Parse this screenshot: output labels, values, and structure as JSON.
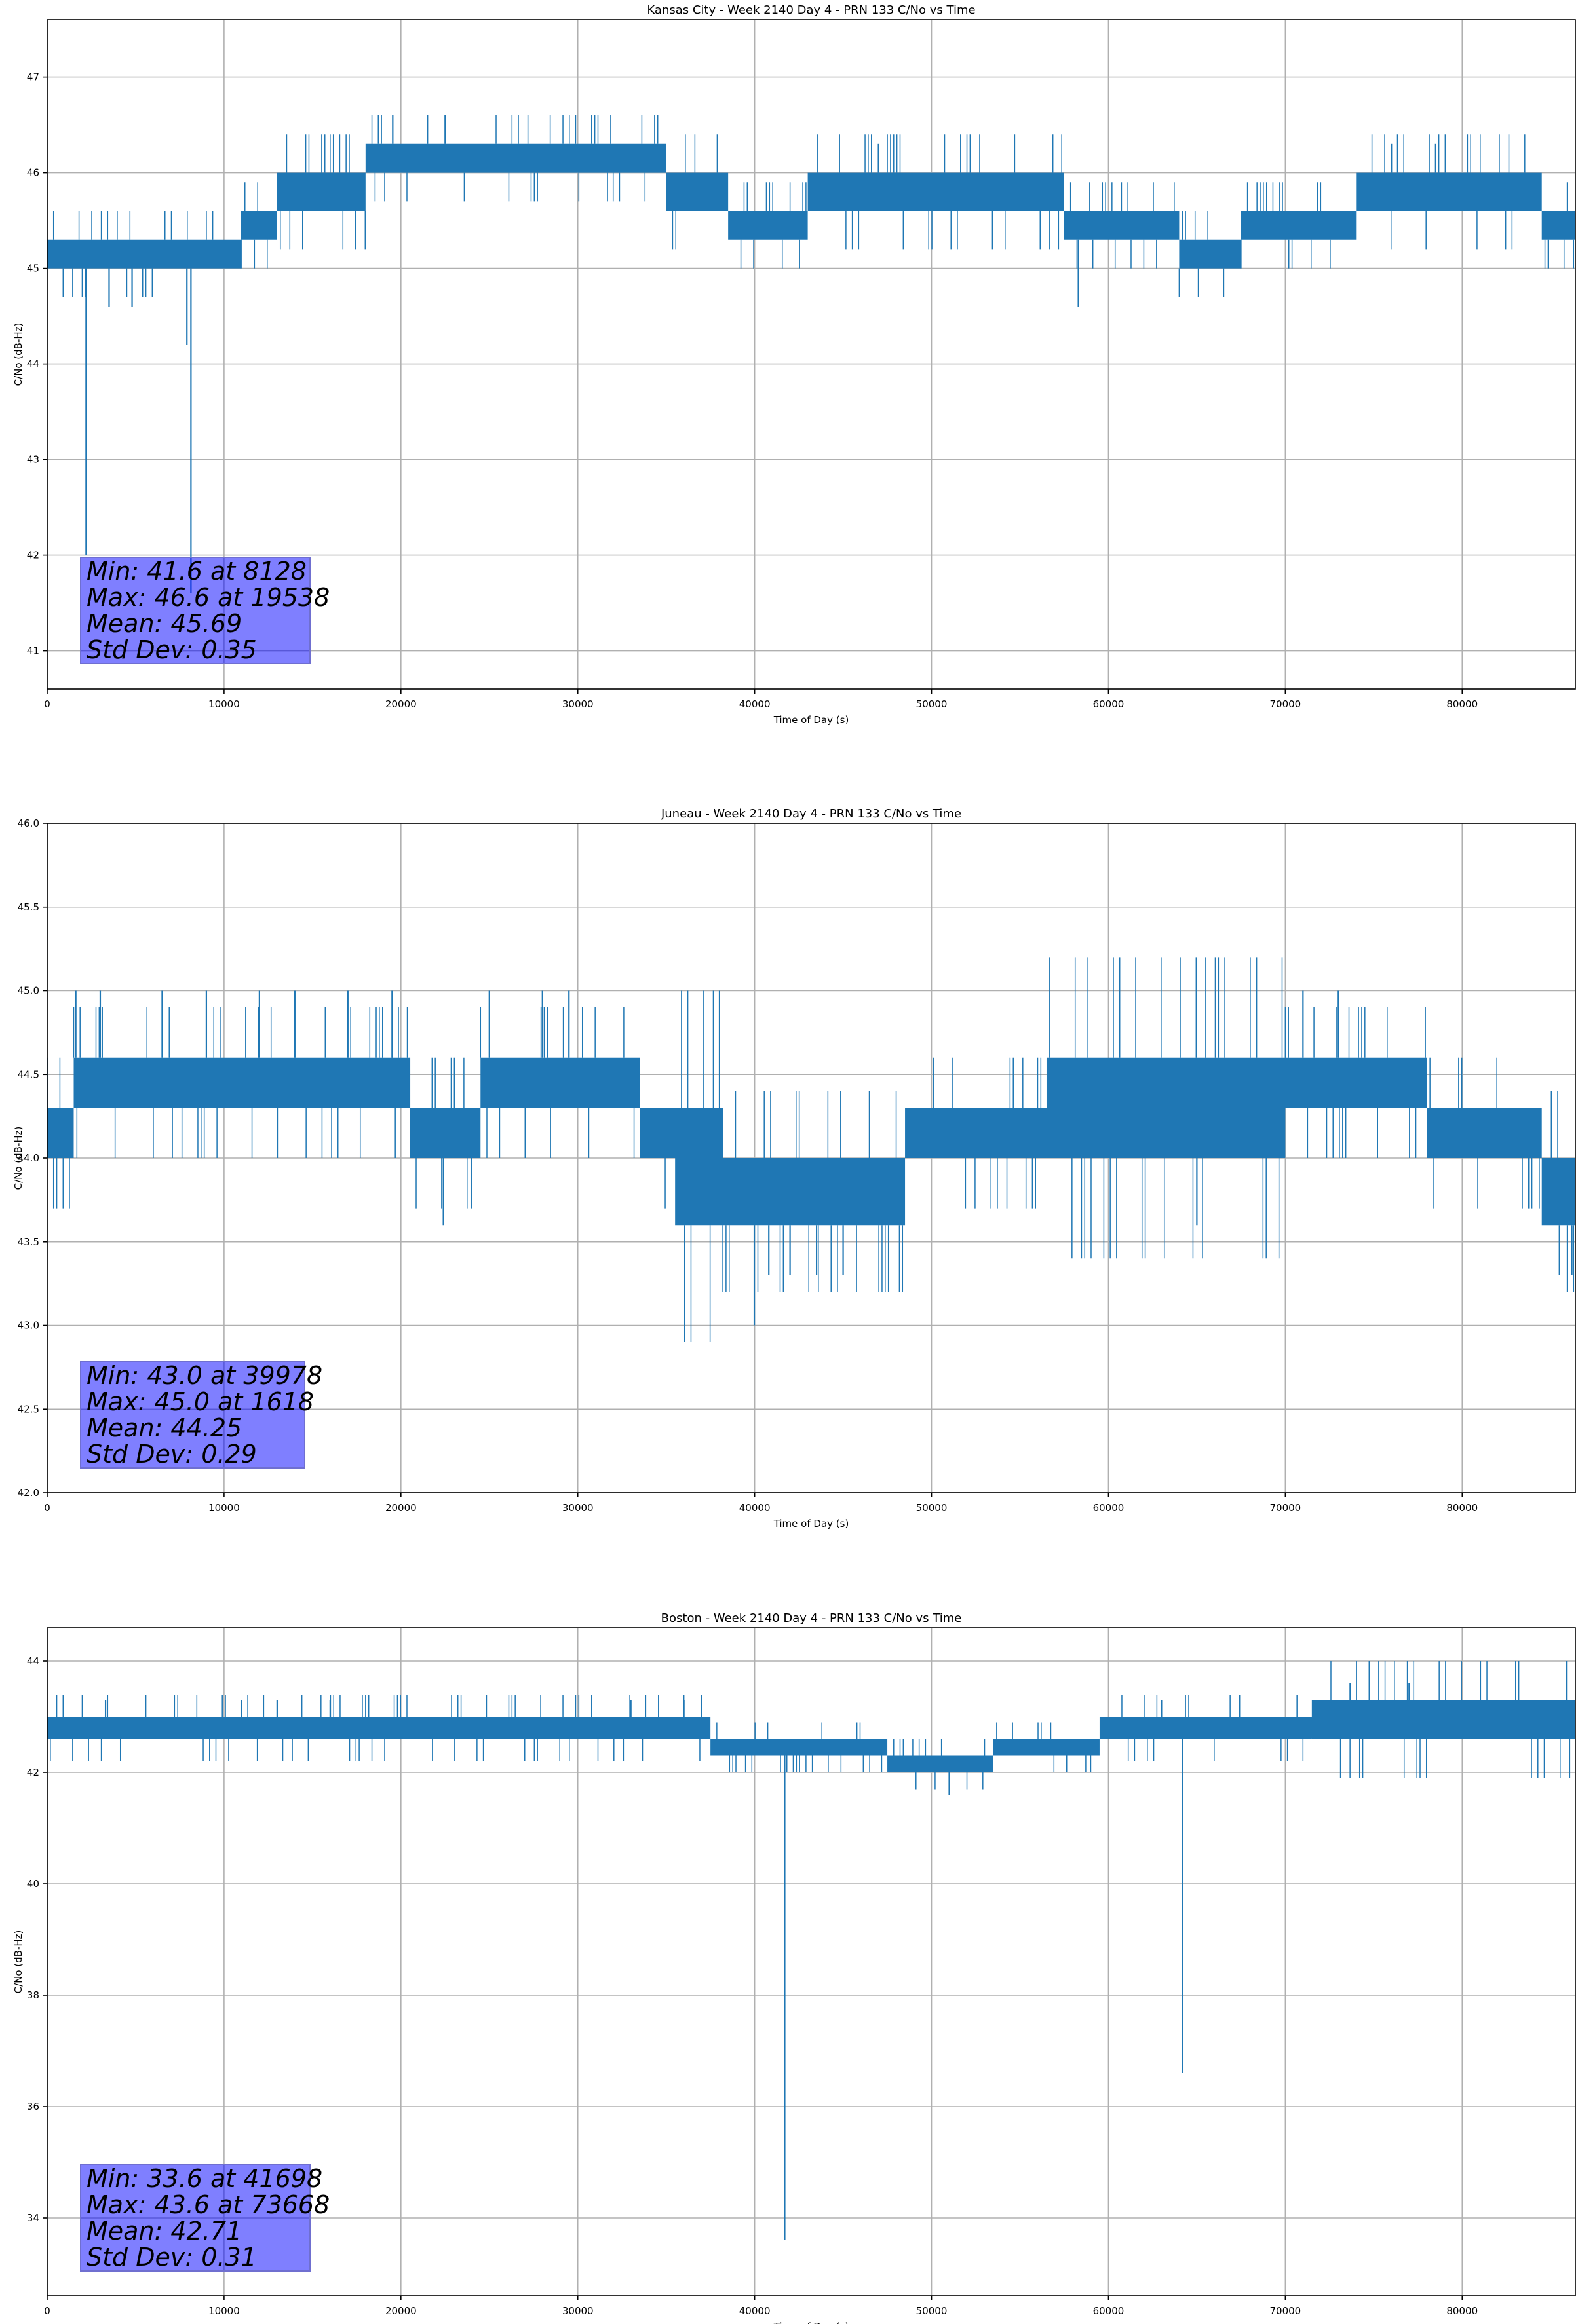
{
  "chart_data": [
    {
      "type": "line",
      "title": "Kansas City - Week 2140 Day 4 - PRN 133 C/No vs Time",
      "xlabel": "Time of Day (s)",
      "ylabel": "C/No (dB-Hz)",
      "xlim": [
        0,
        86400
      ],
      "ylim": [
        40.6,
        47.6
      ],
      "xticks": [
        0,
        10000,
        20000,
        30000,
        40000,
        50000,
        60000,
        70000,
        80000
      ],
      "yticks": [
        41,
        42,
        43,
        44,
        45,
        46,
        47
      ],
      "grid": true,
      "color": "#1f77b4",
      "series": [
        {
          "x": [
            0,
            2000,
            2300,
            5000,
            8000,
            8128,
            8400,
            11000,
            13000,
            16000,
            19538,
            21000,
            24000,
            28000,
            32000,
            35000,
            38000,
            39000,
            42000,
            46000,
            50000,
            52000,
            55000,
            58000,
            58500,
            60000,
            64000,
            66000,
            68000,
            72000,
            76000,
            80000,
            84000,
            85000,
            86400
          ],
          "y": [
            45.2,
            45.1,
            42.1,
            45.2,
            45.2,
            41.6,
            45.2,
            45.4,
            45.6,
            45.8,
            46.6,
            46.2,
            46.2,
            46.1,
            46.1,
            45.8,
            45.8,
            45.4,
            45.4,
            45.8,
            45.8,
            45.8,
            45.7,
            45.6,
            44.6,
            45.4,
            45.4,
            45.2,
            45.5,
            45.5,
            45.8,
            45.8,
            45.8,
            45.5,
            45.4
          ],
          "band": [
            [
              0,
              45.0,
              45.3
            ],
            [
              11000,
              45.3,
              45.6
            ],
            [
              13000,
              45.6,
              46.0
            ],
            [
              16000,
              45.6,
              46.0
            ],
            [
              18000,
              46.0,
              46.3
            ],
            [
              32000,
              46.0,
              46.3
            ],
            [
              35000,
              45.6,
              46.0
            ],
            [
              38000,
              45.6,
              46.0
            ],
            [
              38500,
              45.3,
              45.6
            ],
            [
              42000,
              45.3,
              45.6
            ],
            [
              43000,
              45.6,
              46.0
            ],
            [
              57000,
              45.6,
              46.0
            ],
            [
              57500,
              45.3,
              45.6
            ],
            [
              63000,
              45.3,
              45.6
            ],
            [
              64000,
              45.0,
              45.3
            ],
            [
              67000,
              45.0,
              45.3
            ],
            [
              67500,
              45.3,
              45.6
            ],
            [
              73000,
              45.3,
              45.6
            ],
            [
              74000,
              45.6,
              46.0
            ],
            [
              84000,
              45.6,
              46.0
            ],
            [
              84500,
              45.3,
              45.6
            ],
            [
              86400,
              45.3,
              45.6
            ]
          ],
          "spikes": [
            [
              2200,
              42.0
            ],
            [
              7900,
              44.2
            ],
            [
              8128,
              41.6
            ],
            [
              3500,
              44.6
            ],
            [
              4800,
              44.6
            ],
            [
              58300,
              44.6
            ],
            [
              19538,
              46.6
            ],
            [
              21500,
              46.6
            ],
            [
              22500,
              46.6
            ],
            [
              47000,
              46.3
            ],
            [
              76000,
              46.3
            ],
            [
              78500,
              46.3
            ]
          ]
        }
      ],
      "annotation": {
        "lines": [
          "Min: 41.6 at 8128",
          "Max: 46.6 at 19538",
          "Mean: 45.69",
          "Std Dev: 0.35"
        ]
      }
    },
    {
      "type": "line",
      "title": "Juneau - Week 2140 Day 4 - PRN 133 C/No vs Time",
      "xlabel": "Time of Day (s)",
      "ylabel": "C/No (dB-Hz)",
      "xlim": [
        0,
        86400
      ],
      "ylim": [
        42.0,
        46.0
      ],
      "xticks": [
        0,
        10000,
        20000,
        30000,
        40000,
        50000,
        60000,
        70000,
        80000
      ],
      "yticks": [
        42.0,
        42.5,
        43.0,
        43.5,
        44.0,
        44.5,
        45.0,
        45.5,
        46.0
      ],
      "grid": true,
      "color": "#1f77b4",
      "series": [
        {
          "x": [
            0,
            1618,
            5000,
            10000,
            15000,
            20000,
            25000,
            30000,
            35000,
            38000,
            39978,
            41000,
            45000,
            50000,
            55000,
            60000,
            65000,
            70000,
            75000,
            80000,
            84000,
            86400
          ],
          "y": [
            44.2,
            45.0,
            44.5,
            44.5,
            44.5,
            44.2,
            44.4,
            44.4,
            44.2,
            44.1,
            43.0,
            43.7,
            43.8,
            44.2,
            44.2,
            44.3,
            44.3,
            44.4,
            44.3,
            44.2,
            43.9,
            43.8
          ],
          "band": [
            [
              0,
              44.0,
              44.3
            ],
            [
              1500,
              44.3,
              44.6
            ],
            [
              20000,
              44.3,
              44.6
            ],
            [
              20500,
              44.0,
              44.3
            ],
            [
              24000,
              44.0,
              44.3
            ],
            [
              24500,
              44.3,
              44.6
            ],
            [
              33000,
              44.3,
              44.6
            ],
            [
              33500,
              44.0,
              44.3
            ],
            [
              35000,
              44.0,
              44.3
            ],
            [
              35500,
              43.6,
              44.3
            ],
            [
              38000,
              43.6,
              44.3
            ],
            [
              38200,
              43.6,
              44.0
            ],
            [
              48000,
              43.6,
              44.0
            ],
            [
              48500,
              44.0,
              44.3
            ],
            [
              56000,
              44.0,
              44.3
            ],
            [
              56500,
              44.0,
              44.6
            ],
            [
              70000,
              44.3,
              44.6
            ],
            [
              78000,
              44.0,
              44.3
            ],
            [
              84000,
              44.0,
              44.3
            ],
            [
              84500,
              43.6,
              44.0
            ],
            [
              86400,
              43.6,
              44.0
            ]
          ],
          "spikes": [
            [
              1618,
              45.0
            ],
            [
              3000,
              45.0
            ],
            [
              6500,
              45.0
            ],
            [
              9000,
              45.0
            ],
            [
              12000,
              45.0
            ],
            [
              14000,
              45.0
            ],
            [
              17000,
              45.0
            ],
            [
              19500,
              45.0
            ],
            [
              25000,
              45.0
            ],
            [
              28000,
              45.0
            ],
            [
              29500,
              45.0
            ],
            [
              71000,
              45.0
            ],
            [
              73000,
              45.0
            ],
            [
              22400,
              43.6
            ],
            [
              39978,
              43.0
            ],
            [
              40800,
              43.3
            ],
            [
              42000,
              43.3
            ],
            [
              43500,
              43.3
            ],
            [
              45000,
              43.3
            ],
            [
              65000,
              43.6
            ],
            [
              85500,
              43.3
            ],
            [
              86200,
              43.3
            ]
          ]
        }
      ],
      "annotation": {
        "lines": [
          "Min: 43.0 at 39978",
          "Max: 45.0 at 1618",
          "Mean: 44.25",
          "Std Dev: 0.29"
        ]
      }
    },
    {
      "type": "line",
      "title": "Boston - Week 2140 Day 4 - PRN 133 C/No vs Time",
      "xlabel": "Time of Day (s)",
      "ylabel": "C/No (dB-Hz)",
      "xlim": [
        0,
        86400
      ],
      "ylim": [
        32.6,
        44.6
      ],
      "xticks": [
        0,
        10000,
        20000,
        30000,
        40000,
        50000,
        60000,
        70000,
        80000
      ],
      "yticks": [
        34,
        36,
        38,
        40,
        42,
        44
      ],
      "grid": true,
      "color": "#1f77b4",
      "series": [
        {
          "x": [
            0,
            10000,
            20000,
            30000,
            37000,
            40000,
            41698,
            43000,
            46000,
            48000,
            51000,
            53000,
            58000,
            63000,
            64200,
            65000,
            70000,
            73668,
            80000,
            86400
          ],
          "y": [
            42.8,
            42.8,
            42.8,
            42.8,
            42.7,
            42.6,
            33.6,
            42.5,
            42.4,
            42.1,
            42.1,
            42.4,
            42.6,
            42.8,
            36.6,
            42.8,
            43.0,
            43.6,
            43.0,
            42.9
          ],
          "band": [
            [
              0,
              42.6,
              43.0
            ],
            [
              37000,
              42.6,
              43.0
            ],
            [
              37500,
              42.3,
              42.6
            ],
            [
              47000,
              42.3,
              42.6
            ],
            [
              47500,
              42.0,
              42.3
            ],
            [
              53000,
              42.0,
              42.3
            ],
            [
              53500,
              42.3,
              42.6
            ],
            [
              59000,
              42.3,
              42.6
            ],
            [
              59500,
              42.6,
              43.0
            ],
            [
              71000,
              42.6,
              43.0
            ],
            [
              71500,
              42.6,
              43.3
            ],
            [
              86400,
              42.6,
              43.3
            ]
          ],
          "spikes": [
            [
              41698,
              33.6
            ],
            [
              64200,
              36.6
            ],
            [
              51000,
              41.6
            ],
            [
              3300,
              43.3
            ],
            [
              11000,
              43.3
            ],
            [
              13000,
              43.3
            ],
            [
              16000,
              43.3
            ],
            [
              33000,
              43.3
            ],
            [
              36000,
              43.3
            ],
            [
              63000,
              43.3
            ],
            [
              73668,
              43.6
            ],
            [
              77000,
              43.6
            ]
          ]
        }
      ],
      "annotation": {
        "lines": [
          "Min: 33.6 at 41698",
          "Max: 43.6 at 73668",
          "Mean: 42.71",
          "Std Dev: 0.31"
        ]
      }
    }
  ]
}
